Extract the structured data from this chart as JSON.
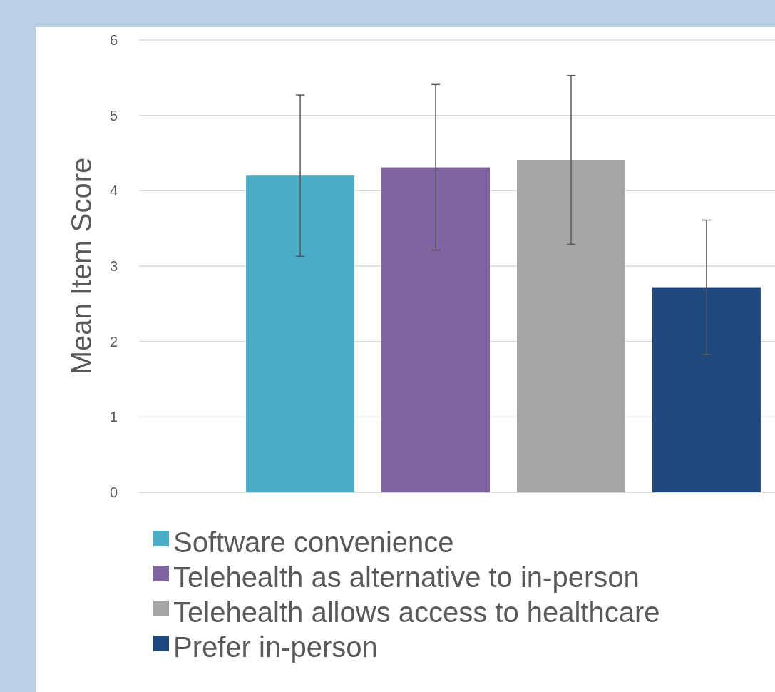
{
  "chart_data": {
    "type": "bar",
    "ylabel": "Mean Item Score",
    "categories": [
      null
    ],
    "series": [
      {
        "name": "Software convenience",
        "color": "#4bacc6",
        "values": [
          4.2
        ],
        "errors": [
          1.07
        ]
      },
      {
        "name": "Telehealth as alternative to in-person",
        "color": "#8064a2",
        "values": [
          4.31
        ],
        "errors": [
          1.1
        ]
      },
      {
        "name": "Telehealth allows access to healthcare",
        "color": "#a5a5a5",
        "values": [
          4.41
        ],
        "errors": [
          1.12
        ]
      },
      {
        "name": "Prefer in-person",
        "color": "#1f497d",
        "values": [
          2.72
        ],
        "errors": [
          0.89
        ]
      }
    ],
    "ylim": [
      0,
      6
    ],
    "yticks": [
      0,
      1,
      2,
      3,
      4,
      5,
      6
    ],
    "grid": "y",
    "legend": "bottom"
  }
}
